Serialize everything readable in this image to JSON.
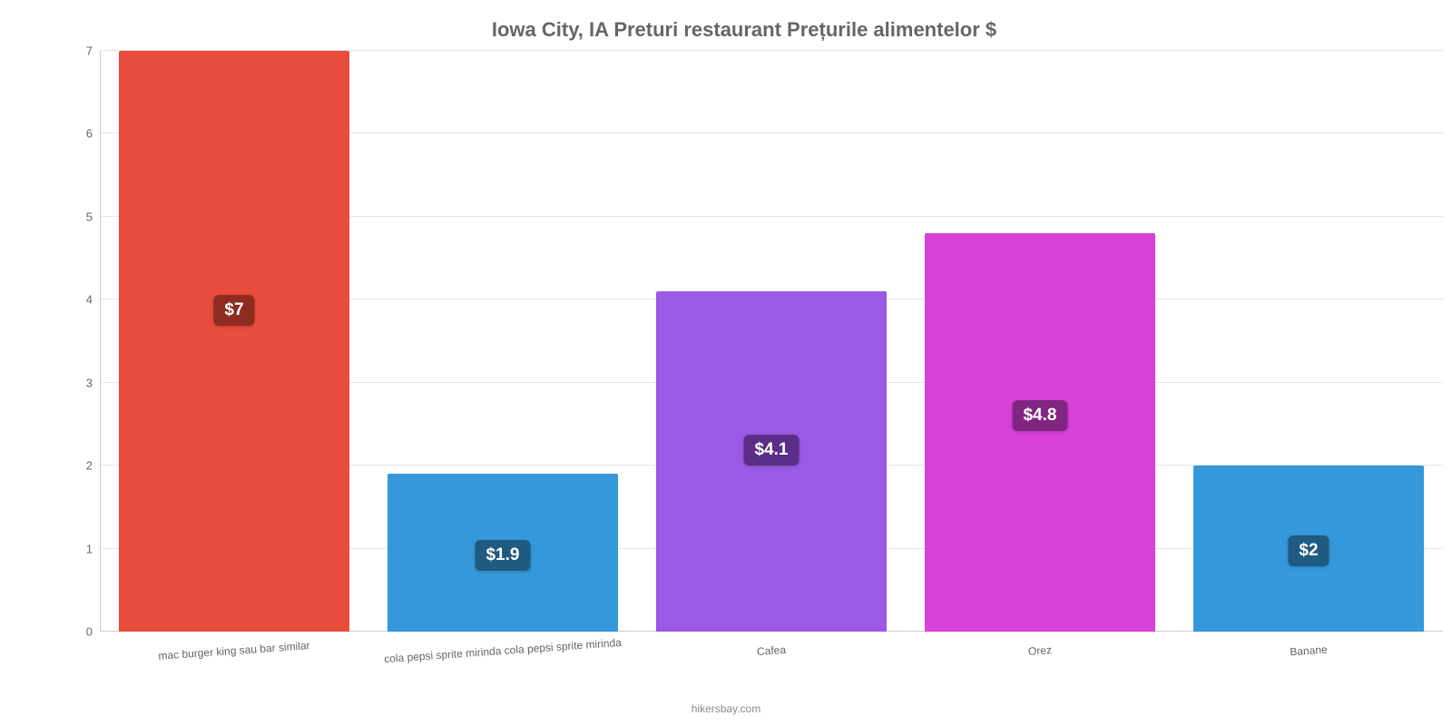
{
  "chart": {
    "type": "bar",
    "title": "Iowa City, IA Preturi restaurant Prețurile alimentelor $",
    "title_fontsize": 22,
    "title_color": "#666666",
    "background_color": "#ffffff",
    "grid_color": "#e6e6e6",
    "axis_color": "#cccccc",
    "ylim_min": 0,
    "ylim_max": 7,
    "ytick_step": 1,
    "yticks": [
      "0",
      "1",
      "2",
      "3",
      "4",
      "5",
      "6",
      "7"
    ],
    "label_fontsize": 12,
    "label_color": "#666666",
    "bar_width_pct": 86,
    "categories": [
      "mac burger king sau bar similar",
      "cola pepsi sprite mirinda cola pepsi sprite mirinda",
      "Cafea",
      "Orez",
      "Banane"
    ],
    "values": [
      7,
      1.9,
      4.1,
      4.8,
      2
    ],
    "value_labels": [
      "$7",
      "$1.9",
      "$4.1",
      "$4.8",
      "$2"
    ],
    "bar_colors": [
      "#e74c3c",
      "#3498db",
      "#9b59e6",
      "#d941d9",
      "#3498db"
    ],
    "badge_colors": [
      "#8f2b21",
      "#1f5a80",
      "#5a2e87",
      "#802680",
      "#1f5a80"
    ],
    "badge_text_color": "#ffffff",
    "badge_fontsize": 19,
    "credit": "hikersbay.com",
    "credit_color": "#888888"
  }
}
